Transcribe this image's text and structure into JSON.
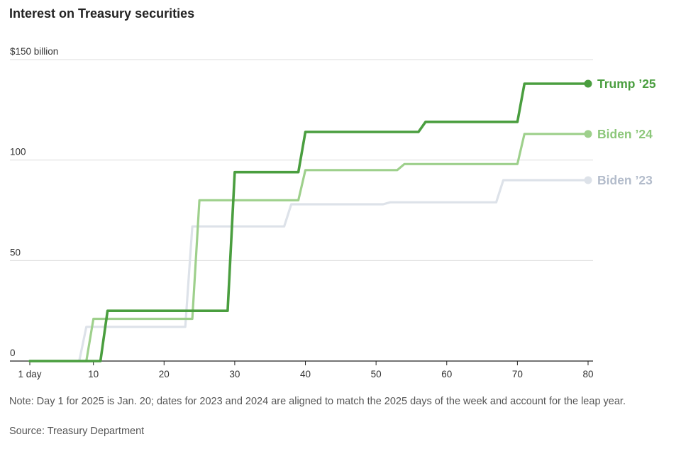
{
  "chart_data": {
    "type": "line",
    "title": "Interest on Treasury securities",
    "ylabel": "$150 billion",
    "ylim": [
      0,
      150
    ],
    "xlim": [
      1,
      80
    ],
    "y_ticks": [
      {
        "value": 150,
        "label": "$150 billion"
      },
      {
        "value": 100,
        "label": "100"
      },
      {
        "value": 50,
        "label": "50"
      },
      {
        "value": 0,
        "label": "0"
      }
    ],
    "x_ticks": [
      {
        "value": 1,
        "label": "1 day"
      },
      {
        "value": 10,
        "label": "10"
      },
      {
        "value": 20,
        "label": "20"
      },
      {
        "value": 30,
        "label": "30"
      },
      {
        "value": 40,
        "label": "40"
      },
      {
        "value": 50,
        "label": "50"
      },
      {
        "value": 60,
        "label": "60"
      },
      {
        "value": 70,
        "label": "70"
      },
      {
        "value": 80,
        "label": "80"
      }
    ],
    "grid": true,
    "series": [
      {
        "name": "Biden '23",
        "label": "Biden ’23",
        "color": "#dde2e9",
        "label_color": "#b3bccb",
        "points": [
          [
            1,
            0
          ],
          [
            8,
            0
          ],
          [
            9,
            17
          ],
          [
            23,
            17
          ],
          [
            24,
            67
          ],
          [
            37,
            67
          ],
          [
            38,
            78
          ],
          [
            51,
            78
          ],
          [
            52,
            79
          ],
          [
            67,
            79
          ],
          [
            68,
            90
          ],
          [
            80,
            90
          ]
        ]
      },
      {
        "name": "Biden '24",
        "label": "Biden ’24",
        "color": "#9ed08c",
        "label_color": "#8cc77a",
        "points": [
          [
            1,
            0
          ],
          [
            9,
            0
          ],
          [
            10,
            21
          ],
          [
            24,
            21
          ],
          [
            25,
            80
          ],
          [
            39,
            80
          ],
          [
            40,
            95
          ],
          [
            53,
            95
          ],
          [
            54,
            98
          ],
          [
            70,
            98
          ],
          [
            71,
            113
          ],
          [
            80,
            113
          ]
        ]
      },
      {
        "name": "Trump '25",
        "label": "Trump ’25",
        "color": "#4a9e3f",
        "label_color": "#4a9e3f",
        "points": [
          [
            1,
            0
          ],
          [
            11,
            0
          ],
          [
            12,
            25
          ],
          [
            29,
            25
          ],
          [
            30,
            94
          ],
          [
            39,
            94
          ],
          [
            40,
            114
          ],
          [
            56,
            114
          ],
          [
            57,
            119
          ],
          [
            70,
            119
          ],
          [
            71,
            138
          ],
          [
            80,
            138
          ]
        ]
      }
    ]
  },
  "footer": {
    "note": "Note: Day 1 for 2025 is Jan. 20; dates for 2023 and 2024 are aligned to match the 2025 days of the week and account for the leap year.",
    "source": "Source: Treasury Department"
  }
}
